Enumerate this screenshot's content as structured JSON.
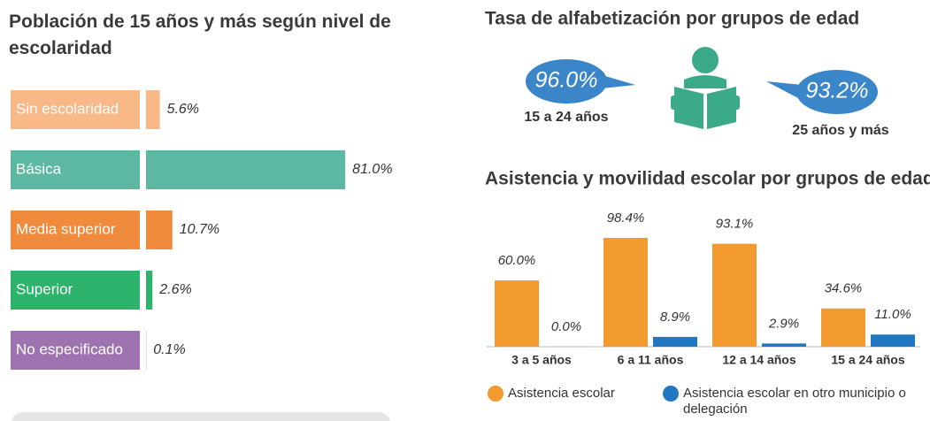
{
  "chart_data": [
    {
      "type": "bar",
      "horizontal": true,
      "title": "Población de 15 años y más según nivel de escolaridad",
      "categories": [
        "Sin escolaridad",
        "Básica",
        "Media superior",
        "Superior",
        "No especificado"
      ],
      "values": [
        5.6,
        81.0,
        10.7,
        2.6,
        0.1
      ],
      "value_labels": [
        "5.6%",
        "81.0%",
        "10.7%",
        "2.6%",
        "0.1%"
      ],
      "colors": [
        "#f8b888",
        "#5cb8a0",
        "#f08a3c",
        "#2db36b",
        "#9d74b0"
      ]
    },
    {
      "type": "bar",
      "horizontal": false,
      "title": "Asistencia y movilidad escolar por grupos de edad",
      "categories": [
        "3 a 5 años",
        "6 a 11 años",
        "12 a 14 años",
        "15 a 24 años"
      ],
      "series": [
        {
          "name": "Asistencia escolar",
          "color": "#f39a2e",
          "values": [
            60.0,
            98.4,
            93.1,
            34.6
          ],
          "value_labels": [
            "60.0%",
            "98.4%",
            "93.1%",
            "34.6%"
          ]
        },
        {
          "name": "Asistencia escolar en otro municipio o delegación",
          "color": "#1f78c1",
          "values": [
            0.0,
            8.9,
            2.9,
            11.0
          ],
          "value_labels": [
            "0.0%",
            "8.9%",
            "2.9%",
            "11.0%"
          ]
        }
      ]
    }
  ],
  "literacy": {
    "title": "Tasa de alfabetización por grupos de edad",
    "groups": [
      {
        "value_label": "96.0%",
        "label": "15 a 24 años"
      },
      {
        "value_label": "93.2%",
        "label": "25 años y más"
      }
    ]
  }
}
